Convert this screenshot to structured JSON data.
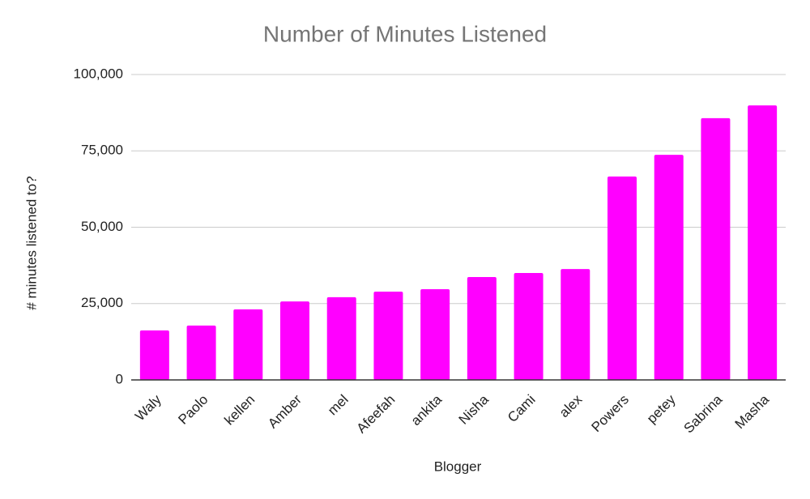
{
  "chart_data": {
    "type": "bar",
    "title": "Number of Minutes Listened",
    "x_label": "Blogger",
    "y_label": "# minutes listened to?",
    "categories": [
      "Waly",
      "Paolo",
      "kellen",
      "Amber",
      "mel",
      "Afeefah",
      "ankita",
      "Nisha",
      "Cami",
      "alex",
      "Powers",
      "petey",
      "Sabrina",
      "Masha"
    ],
    "values": [
      16200,
      17800,
      23100,
      25700,
      27100,
      28900,
      29700,
      33700,
      35000,
      36300,
      66600,
      73700,
      85700,
      89900
    ],
    "color": "#ff00ff",
    "ylim": [
      0,
      100000
    ],
    "yticks": [
      0,
      {
        "value": 25000,
        "label": "25,000"
      },
      {
        "value": 50000,
        "label": "50,000"
      },
      {
        "value": 75000,
        "label": "75,000"
      },
      {
        "value": 100000,
        "label": "100,000"
      }
    ],
    "grid": true
  }
}
